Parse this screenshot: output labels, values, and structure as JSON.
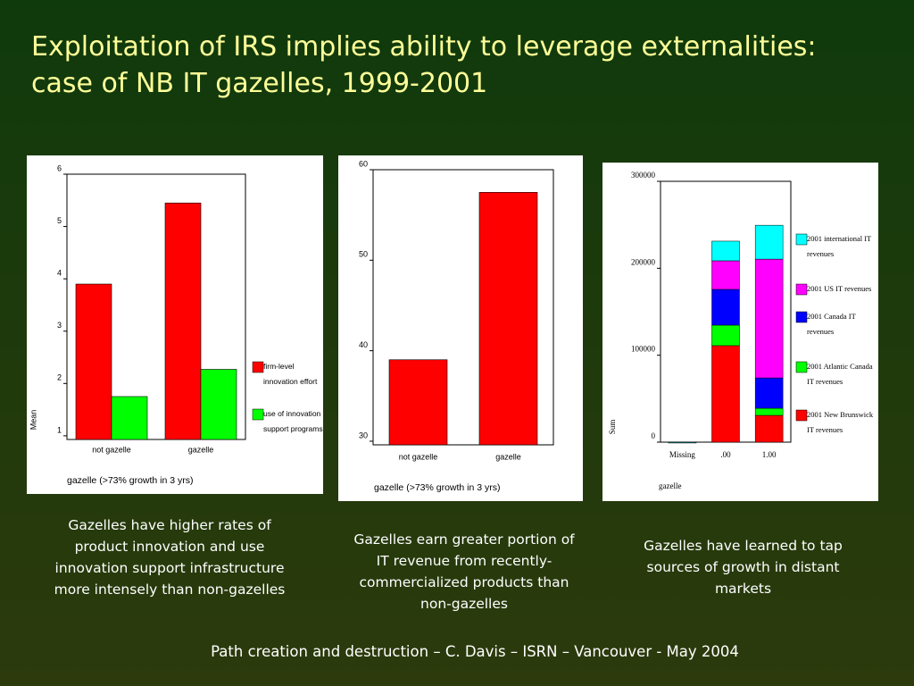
{
  "title": "Exploitation of IRS implies ability to leverage externalities: case of NB IT gazelles, 1999-2001",
  "captions": [
    "Gazelles have higher rates of product innovation and use innovation support infrastructure more intensely than non-gazelles",
    "Gazelles earn greater portion of IT revenue from recently-commercialized products than non-gazelles",
    "Gazelles have learned to tap sources of growth in distant markets"
  ],
  "footer": "Path creation and destruction – C. Davis – ISRN – Vancouver - May 2004",
  "chart_data": [
    {
      "type": "bar",
      "categories": [
        "not gazelle",
        "gazelle"
      ],
      "xlabel": "gazelle (>73% growth in 3 yrs)",
      "ylabel": "Mean",
      "series": [
        {
          "name": "firm-level innovation effort",
          "color": "#ff0000",
          "values": [
            3.9,
            5.45
          ]
        },
        {
          "name": "use of innovation support programs",
          "color": "#00ff00",
          "values": [
            1.75,
            2.27
          ]
        }
      ],
      "ylim": [
        0.93,
        6
      ],
      "yticks": [
        1,
        2,
        3,
        4,
        5,
        6
      ]
    },
    {
      "type": "bar",
      "categories": [
        "not gazelle",
        "gazelle"
      ],
      "xlabel": "gazelle (>73% growth in 3 yrs)",
      "series": [
        {
          "color": "#ff0000",
          "values": [
            39,
            57.5
          ]
        }
      ],
      "ylim": [
        29.6,
        60
      ],
      "yticks": [
        30,
        40,
        50,
        60
      ]
    },
    {
      "type": "stacked_bar",
      "categories": [
        "Missing",
        ".00",
        "1.00"
      ],
      "xlabel": "gazelle",
      "ylabel": "Sum",
      "series": [
        {
          "name": "2001 New Brunswick IT revenues",
          "color": "#ff0000",
          "values": [
            0,
            111000,
            30800
          ]
        },
        {
          "name": "2001 Atlantic Canada IT revenues",
          "color": "#00ff00",
          "values": [
            0,
            23600,
            8200
          ]
        },
        {
          "name": "2001 Canada IT revenues",
          "color": "#0000ff",
          "values": [
            0,
            41100,
            34900
          ]
        },
        {
          "name": "2001 US IT revenues",
          "color": "#ff00ff",
          "values": [
            0,
            32900,
            136600
          ]
        },
        {
          "name": "2001 international IT revenues",
          "color": "#00ffff",
          "values": [
            0,
            22600,
            39000
          ]
        }
      ],
      "ylim": [
        0,
        300000
      ],
      "yticks": [
        0,
        100000,
        200000,
        300000
      ]
    }
  ]
}
